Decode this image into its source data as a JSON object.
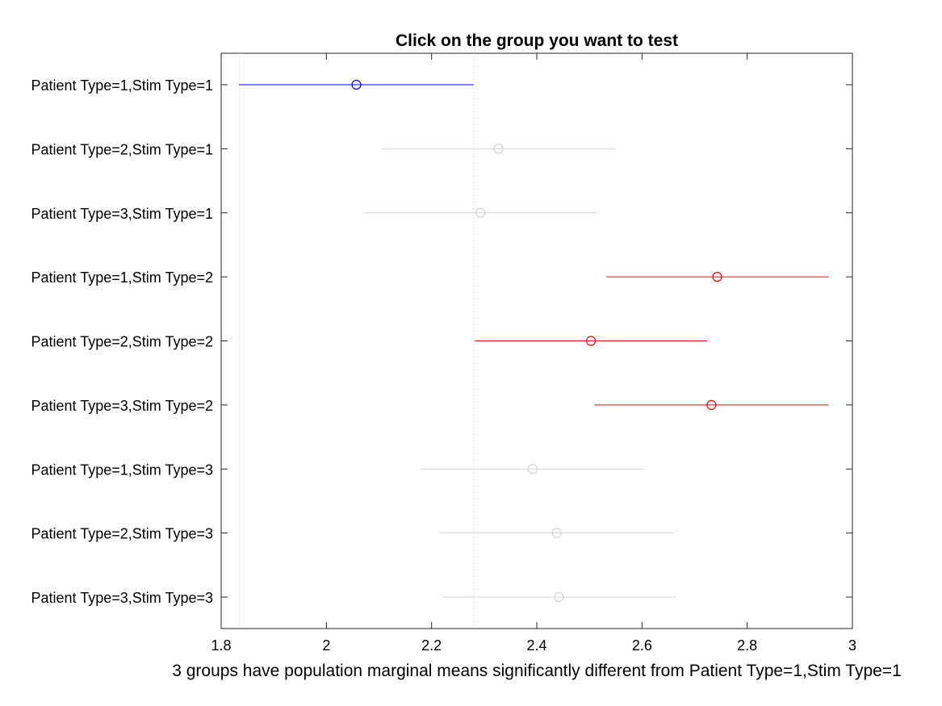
{
  "chart_data": {
    "type": "scatter",
    "title": "Click on the group you want to test",
    "xlabel": "3 groups have population marginal means significantly different from Patient Type=1,Stim Type=1",
    "ylabel": "",
    "xlim": [
      1.8,
      3.0
    ],
    "xticks": [
      "1.8",
      "2",
      "2.2",
      "2.4",
      "2.6",
      "2.8",
      "3"
    ],
    "grid": false,
    "selected_interval": [
      1.834,
      2.28
    ],
    "colors": {
      "selected": "#0000ff",
      "significant": "#ff0000",
      "not_significant": "#d3d3d3",
      "reference_line": "#c8c8c8"
    },
    "groups": [
      {
        "label": "Patient Type=1,Stim Type=1",
        "mean": 2.057,
        "lower": 1.834,
        "upper": 2.28,
        "status": "selected"
      },
      {
        "label": "Patient Type=2,Stim Type=1",
        "mean": 2.327,
        "lower": 2.105,
        "upper": 2.55,
        "status": "not_significant"
      },
      {
        "label": "Patient Type=3,Stim Type=1",
        "mean": 2.293,
        "lower": 2.072,
        "upper": 2.515,
        "status": "not_significant"
      },
      {
        "label": "Patient Type=1,Stim Type=2",
        "mean": 2.743,
        "lower": 2.532,
        "upper": 2.955,
        "status": "significant"
      },
      {
        "label": "Patient Type=2,Stim Type=2",
        "mean": 2.503,
        "lower": 2.282,
        "upper": 2.724,
        "status": "significant"
      },
      {
        "label": "Patient Type=3,Stim Type=2",
        "mean": 2.732,
        "lower": 2.51,
        "upper": 2.955,
        "status": "significant"
      },
      {
        "label": "Patient Type=1,Stim Type=3",
        "mean": 2.392,
        "lower": 2.18,
        "upper": 2.604,
        "status": "not_significant"
      },
      {
        "label": "Patient Type=2,Stim Type=3",
        "mean": 2.438,
        "lower": 2.216,
        "upper": 2.66,
        "status": "not_significant"
      },
      {
        "label": "Patient Type=3,Stim Type=3",
        "mean": 2.442,
        "lower": 2.221,
        "upper": 2.665,
        "status": "not_significant"
      }
    ]
  }
}
